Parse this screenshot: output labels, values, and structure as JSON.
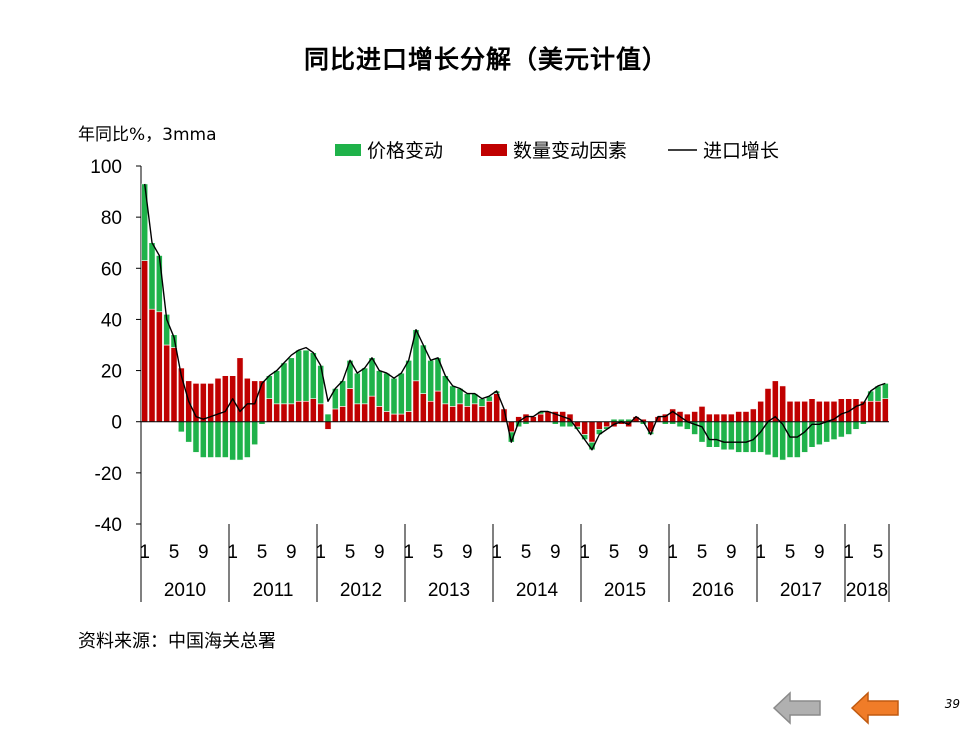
{
  "title": "同比进口增长分解（美元计值）",
  "unit_label": "年同比%，3mma",
  "source": "资料来源：中国海关总署",
  "page_number": "39",
  "colors": {
    "price": "#1fb24a",
    "quantity": "#c00000",
    "line": "#000000",
    "nav_back": "#b0b0b0",
    "nav_back_stroke": "#8a8a8a",
    "nav_fwd": "#f07c28",
    "nav_fwd_stroke": "#c05a10"
  },
  "nav": {
    "back_icon": "left-arrow-gray",
    "forward_icon": "left-arrow-orange"
  },
  "chart_data": {
    "type": "bar",
    "stacked": true,
    "title": "同比进口增长分解（美元计值）",
    "ylabel": "年同比%，3mma",
    "ylim": [
      -40,
      100
    ],
    "yticks": [
      100,
      80,
      60,
      40,
      20,
      0,
      -20,
      -40
    ],
    "legend_position": "top",
    "month_tick_labels": [
      "1",
      "5",
      "9"
    ],
    "years": [
      "2010",
      "2011",
      "2012",
      "2013",
      "2014",
      "2015",
      "2016",
      "2017",
      "2018"
    ],
    "months_per_year": [
      12,
      12,
      12,
      12,
      12,
      12,
      12,
      12,
      6
    ],
    "x_start": "2010-01",
    "x_end": "2018-06",
    "series": [
      {
        "name": "价格变动",
        "kind": "bar",
        "values": [
          30,
          26,
          22,
          12,
          5,
          -4,
          -8,
          -12,
          -14,
          -14,
          -14,
          -14,
          -15,
          -15,
          -14,
          -9,
          -1,
          9,
          13,
          16,
          18,
          20,
          20,
          18,
          15,
          3,
          8,
          10,
          11,
          12,
          14,
          15,
          14,
          15,
          14,
          16,
          20,
          20,
          19,
          16,
          13,
          11,
          8,
          6,
          5,
          4,
          3,
          2,
          1,
          0,
          -4,
          -2,
          -1,
          0,
          1,
          0,
          -1,
          -2,
          -2,
          -1,
          -2,
          -3,
          -2,
          -1,
          1,
          1,
          1,
          0,
          -1,
          -1,
          0,
          -1,
          -1,
          -2,
          -3,
          -5,
          -8,
          -10,
          -10,
          -11,
          -11,
          -12,
          -12,
          -12,
          -12,
          -13,
          -14,
          -15,
          -14,
          -14,
          -12,
          -10,
          -9,
          -8,
          -7,
          -6,
          -5,
          -3,
          -1,
          4,
          6,
          6
        ]
      },
      {
        "name": "数量变动因素",
        "kind": "bar",
        "values": [
          63,
          44,
          43,
          30,
          29,
          21,
          16,
          15,
          15,
          15,
          17,
          18,
          18,
          25,
          17,
          16,
          16,
          9,
          7,
          7,
          7,
          8,
          8,
          9,
          7,
          -3,
          5,
          6,
          13,
          7,
          7,
          10,
          6,
          4,
          3,
          3,
          4,
          16,
          11,
          8,
          12,
          7,
          6,
          7,
          6,
          7,
          6,
          8,
          11,
          5,
          -4,
          2,
          3,
          2,
          3,
          4,
          4,
          4,
          3,
          -2,
          -5,
          -8,
          -3,
          -2,
          -2,
          -1,
          -2,
          2,
          1,
          -4,
          2,
          3,
          5,
          4,
          3,
          4,
          6,
          3,
          3,
          3,
          3,
          4,
          4,
          5,
          8,
          13,
          16,
          14,
          8,
          8,
          8,
          9,
          8,
          8,
          8,
          9,
          9,
          9,
          8,
          8,
          8,
          9
        ]
      },
      {
        "name": "进口增长",
        "kind": "line",
        "values": [
          93,
          70,
          65,
          40,
          33,
          18,
          8,
          2,
          1,
          2,
          3,
          4,
          9,
          4,
          7,
          7,
          15,
          18,
          20,
          23,
          26,
          28,
          29,
          27,
          22,
          8,
          13,
          16,
          24,
          19,
          21,
          25,
          20,
          19,
          17,
          19,
          24,
          36,
          30,
          24,
          25,
          18,
          14,
          13,
          11,
          11,
          9,
          10,
          12,
          5,
          -8,
          0,
          2,
          2,
          4,
          4,
          3,
          2,
          1,
          -3,
          -7,
          -11,
          -5,
          -3,
          -1,
          0,
          -1,
          2,
          0,
          -5,
          2,
          2,
          4,
          2,
          0,
          -1,
          -2,
          -7,
          -7,
          -8,
          -8,
          -8,
          -8,
          -7,
          -4,
          0,
          2,
          -1,
          -6,
          -6,
          -4,
          -1,
          -1,
          0,
          1,
          3,
          4,
          6,
          7,
          12,
          14,
          15
        ]
      }
    ]
  }
}
